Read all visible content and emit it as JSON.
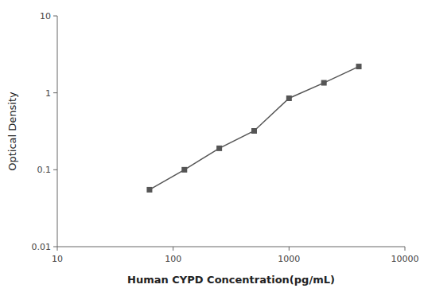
{
  "chart_data": {
    "type": "line",
    "x": [
      62.5,
      125,
      250,
      500,
      1000,
      2000,
      4000
    ],
    "values": [
      0.055,
      0.1,
      0.19,
      0.32,
      0.85,
      1.35,
      2.2
    ],
    "xlabel": "Human CYPD Concentration(pg/mL)",
    "ylabel": "Optical Density",
    "xlim": [
      10,
      10000
    ],
    "ylim": [
      0.01,
      10
    ],
    "xticks": [
      10,
      100,
      1000,
      10000
    ],
    "yticks": [
      0.01,
      0.1,
      1,
      10
    ],
    "log": true,
    "color": "#555555",
    "marker": "square"
  }
}
